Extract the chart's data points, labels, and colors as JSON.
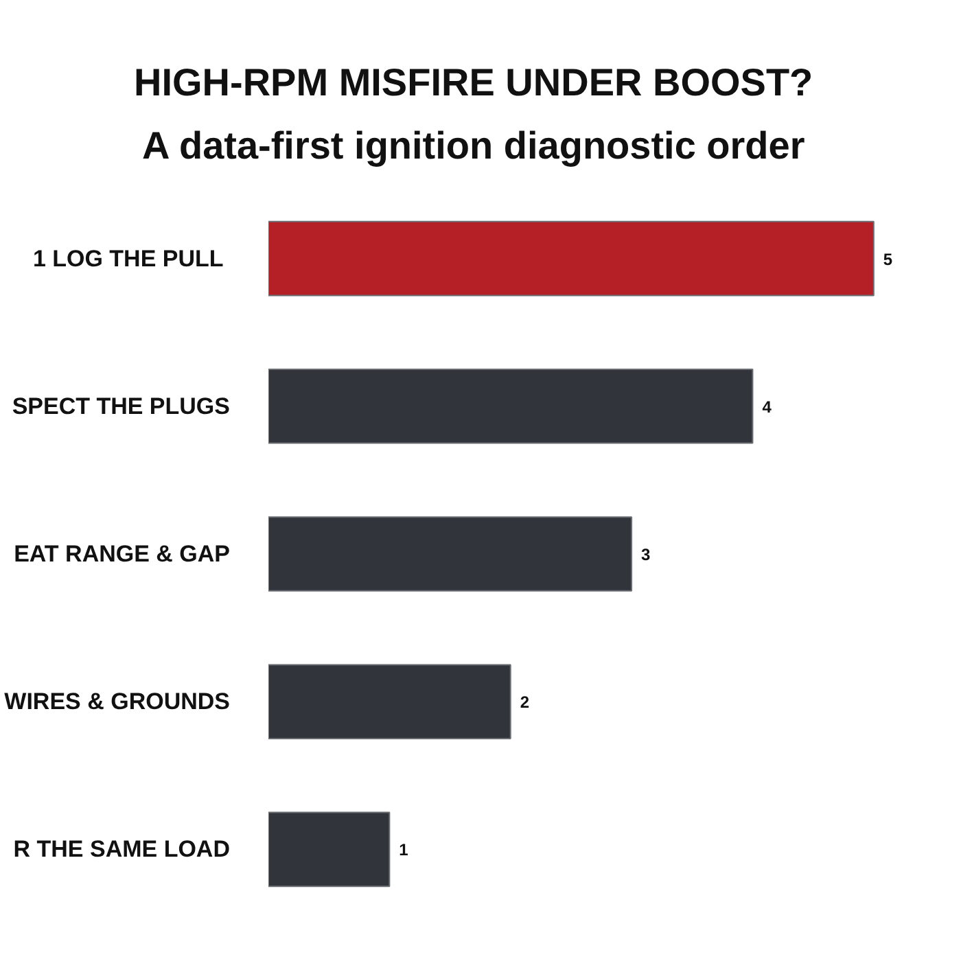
{
  "chart_data": {
    "type": "bar",
    "orientation": "horizontal",
    "title": "HIGH-RPM MISFIRE UNDER BOOST?",
    "subtitle": "A data-first ignition diagnostic order",
    "categories": [
      "1  LOG THE PULL",
      "SPECT THE PLUGS",
      "EAT RANGE & GAP",
      "WIRES & GROUNDS",
      "R THE SAME LOAD"
    ],
    "values": [
      5,
      4,
      3,
      2,
      1
    ],
    "colors": [
      "#b51f26",
      "#31343b",
      "#31343b",
      "#31343b",
      "#31343b"
    ],
    "data_labels": true
  }
}
